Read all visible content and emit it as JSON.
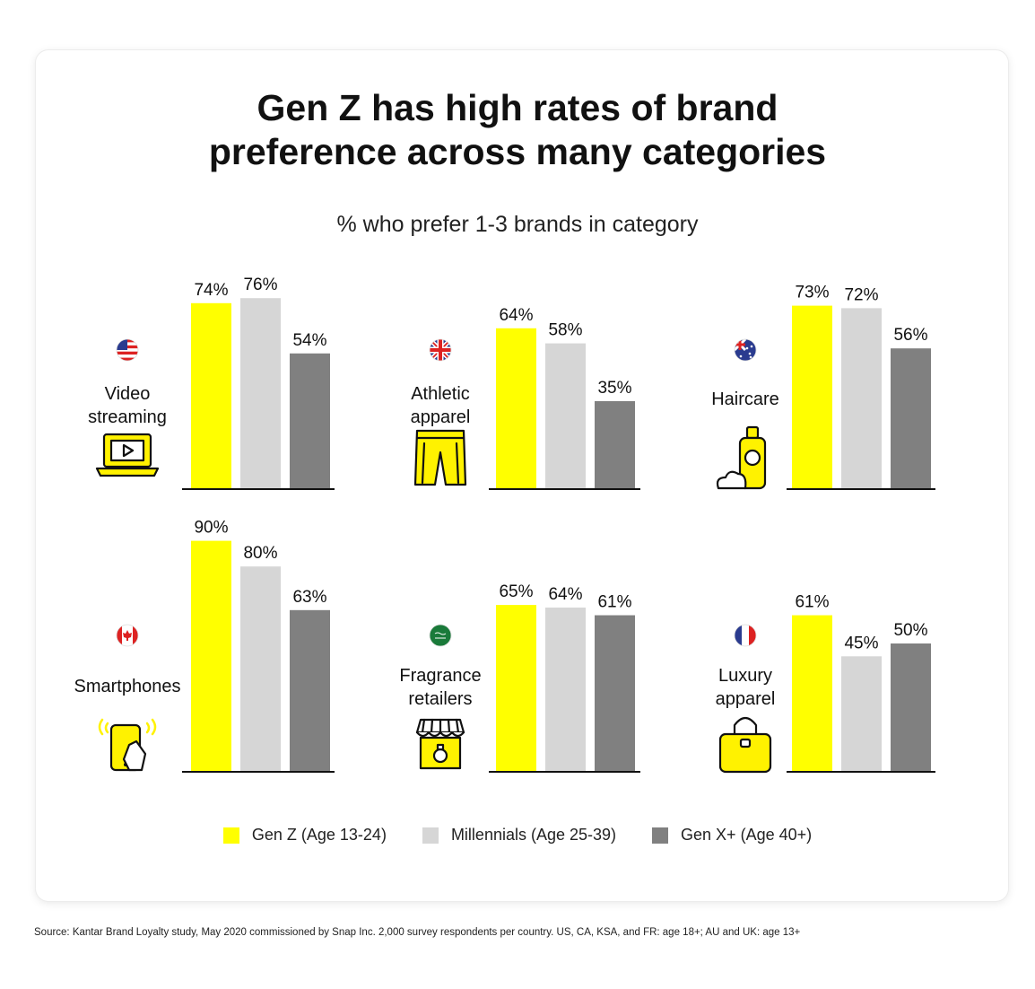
{
  "title_line1": "Gen Z has high rates of brand",
  "title_line2": "preference across many categories",
  "subtitle": "% who prefer 1-3 brands in category",
  "colors": {
    "gen_z": "#ffff00",
    "millennials": "#d6d6d6",
    "gen_x": "#808080",
    "icon_yellow": "#fff200"
  },
  "legend": [
    {
      "label": "Gen Z (Age 13-24)",
      "color": "#ffff00"
    },
    {
      "label": "Millennials (Age 25-39)",
      "color": "#d6d6d6"
    },
    {
      "label": "Gen X+ (Age 40+)",
      "color": "#808080"
    }
  ],
  "source": "Source: Kantar Brand Loyalty study, May 2020 commissioned by Snap Inc. 2,000 survey respondents per country. US, CA, KSA, and FR: age 18+; AU and UK: age 13+",
  "chart_data": {
    "type": "bar",
    "title": "Gen Z has high rates of brand preference across many categories",
    "subtitle": "% who prefer 1-3 brands in category",
    "unit": "%",
    "ylim": [
      0,
      100
    ],
    "grid": false,
    "legend_placement": "bottom",
    "series_names": [
      "Gen Z (Age 13-24)",
      "Millennials (Age 25-39)",
      "Gen X+ (Age 40+)"
    ],
    "panels": [
      {
        "label_lines": [
          "Video",
          "streaming"
        ],
        "flag": "us-flag-icon",
        "icon": "laptop-play-icon",
        "values": [
          74,
          76,
          54
        ],
        "labels": [
          "74%",
          "76%",
          "54%"
        ]
      },
      {
        "label_lines": [
          "Athletic",
          "apparel"
        ],
        "flag": "uk-flag-icon",
        "icon": "shorts-icon",
        "values": [
          64,
          58,
          35
        ],
        "labels": [
          "64%",
          "58%",
          "35%"
        ]
      },
      {
        "label_lines": [
          "Haircare"
        ],
        "flag": "australia-flag-icon",
        "icon": "shampoo-bottle-icon",
        "values": [
          73,
          72,
          56
        ],
        "labels": [
          "73%",
          "72%",
          "56%"
        ]
      },
      {
        "label_lines": [
          "Smartphones"
        ],
        "flag": "canada-flag-icon",
        "icon": "smartphone-icon",
        "values": [
          90,
          80,
          63
        ],
        "labels": [
          "90%",
          "80%",
          "63%"
        ]
      },
      {
        "label_lines": [
          "Fragrance",
          "retailers"
        ],
        "flag": "saudi-flag-icon",
        "icon": "shop-perfume-icon",
        "values": [
          65,
          64,
          61
        ],
        "labels": [
          "65%",
          "64%",
          "61%"
        ]
      },
      {
        "label_lines": [
          "Luxury",
          "apparel"
        ],
        "flag": "france-flag-icon",
        "icon": "handbag-icon",
        "values": [
          61,
          45,
          50
        ],
        "labels": [
          "61%",
          "45%",
          "50%"
        ]
      }
    ]
  }
}
